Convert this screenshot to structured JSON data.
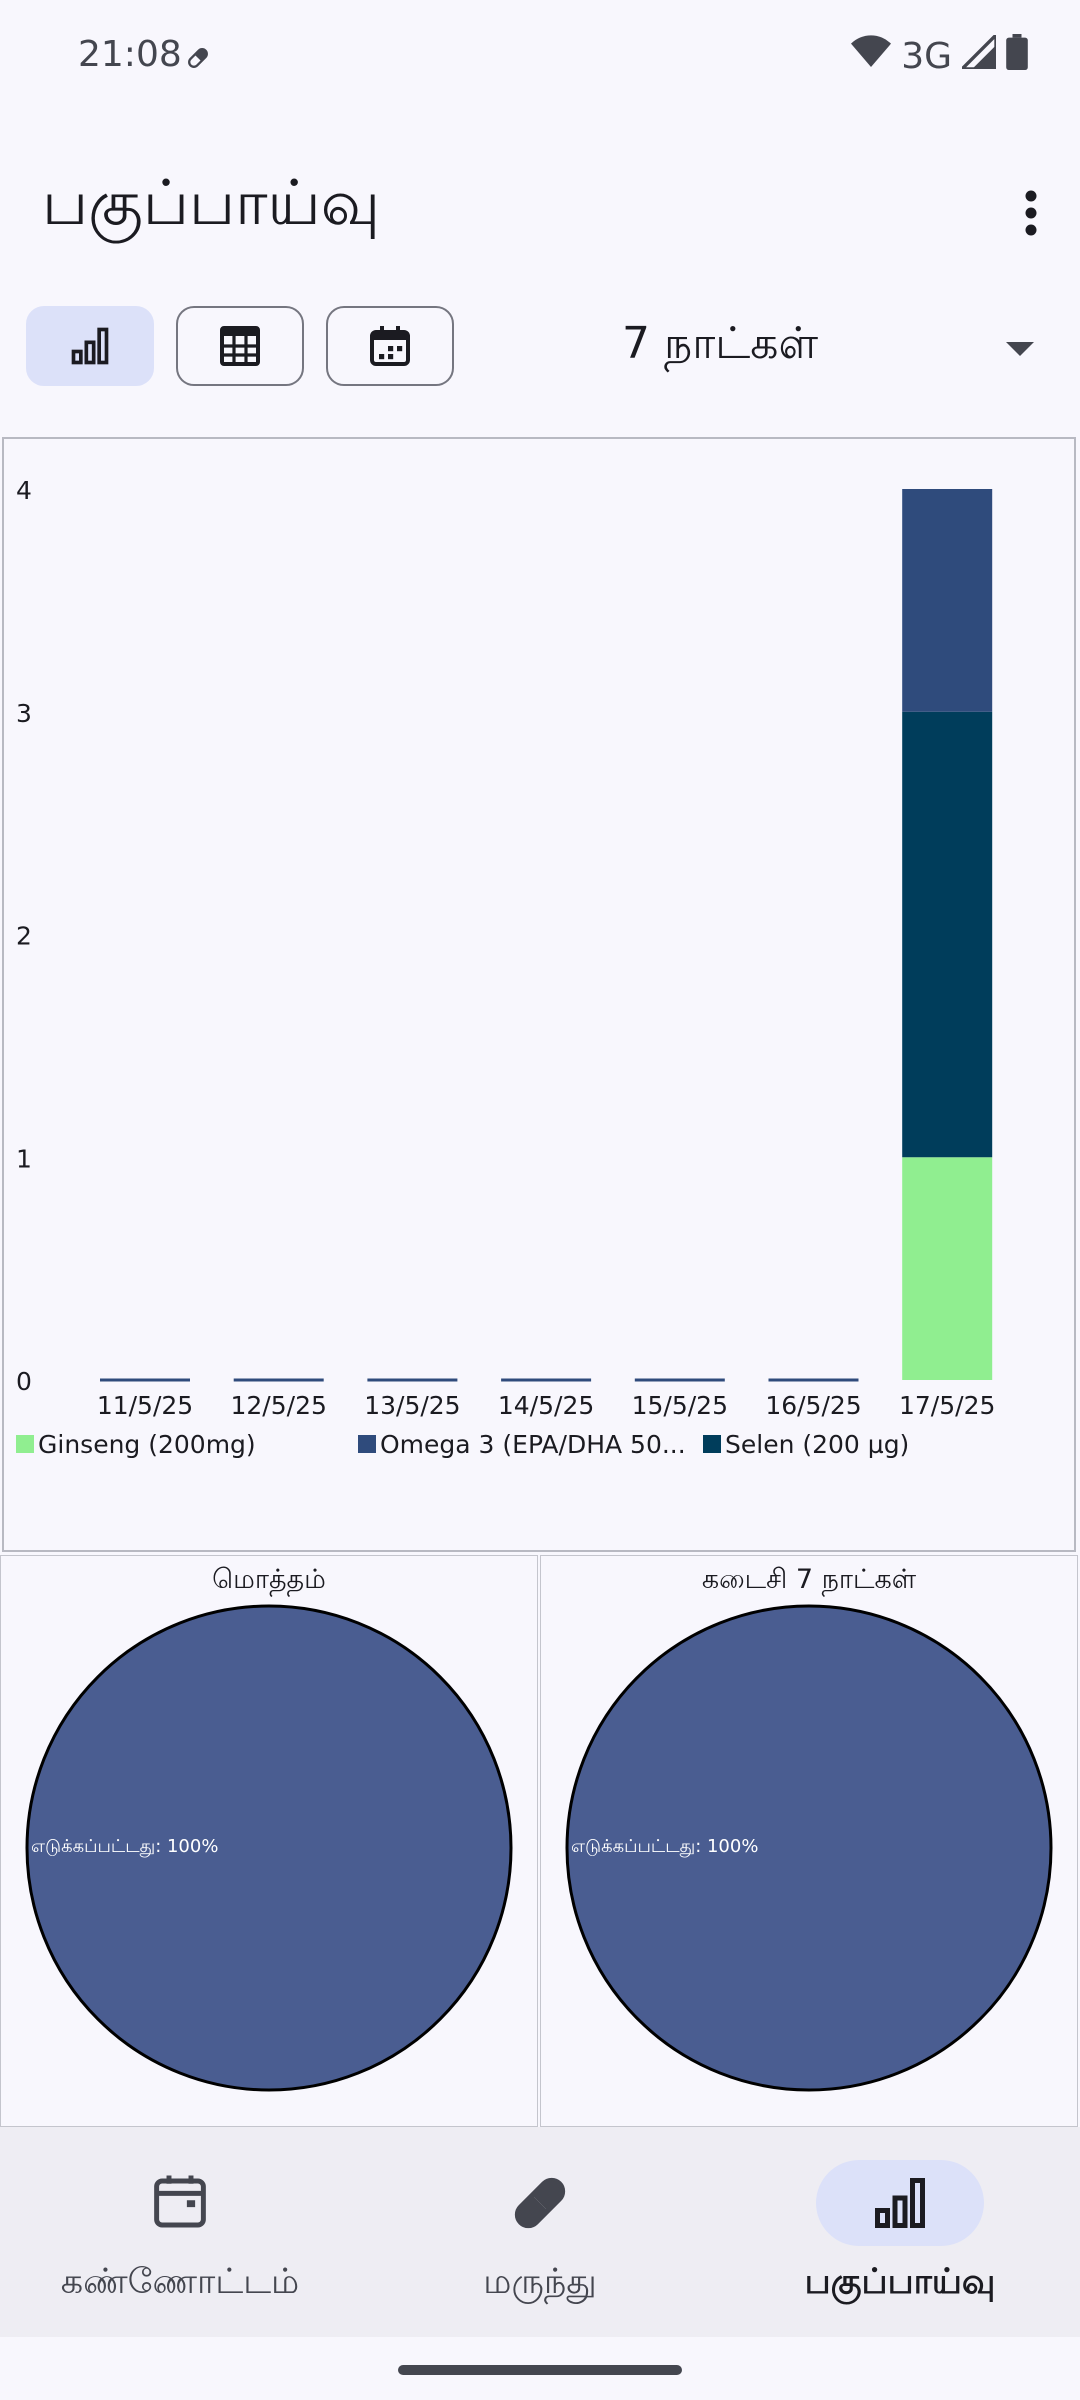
{
  "status": {
    "time": "21:08",
    "network": "3G"
  },
  "header": {
    "title": "பகுப்பாய்வு"
  },
  "view_toggle": {
    "options": [
      "bar-chart-icon",
      "table-icon",
      "calendar-icon"
    ],
    "selected": "bar-chart-icon"
  },
  "range": {
    "selected": "7 நாட்கள்"
  },
  "chart_data": [
    {
      "type": "bar",
      "stacked": true,
      "categories": [
        "11/5/25",
        "12/5/25",
        "13/5/25",
        "14/5/25",
        "15/5/25",
        "16/5/25",
        "17/5/25"
      ],
      "series": [
        {
          "name": "Ginseng (200mg)",
          "color": "#90ee90",
          "values": [
            0,
            0,
            0,
            0,
            0,
            0,
            1
          ]
        },
        {
          "name": "Selen (200 µg)",
          "color": "#003d5b",
          "values": [
            0,
            0,
            0,
            0,
            0,
            0,
            2
          ]
        },
        {
          "name": "Omega 3 (EPA/DHA 50...",
          "color": "#2f4b7c",
          "values": [
            0,
            0,
            0,
            0,
            0,
            0,
            1
          ]
        }
      ],
      "legend_order": [
        "Ginseng (200mg)",
        "Omega 3 (EPA/DHA 50...",
        "Selen (200 µg)"
      ],
      "ylim": [
        0,
        4
      ],
      "yticks": [
        "0",
        "1",
        "2",
        "3",
        "4"
      ],
      "grid": false,
      "legend_position": "bottom-left"
    },
    {
      "type": "pie",
      "title": "மொத்தம்",
      "slices": [
        {
          "label": "எடுக்கப்பட்டது: 100%",
          "value": 100,
          "color": "#4a5d91"
        }
      ]
    },
    {
      "type": "pie",
      "title": "கடைசி 7 நாட்கள்",
      "slices": [
        {
          "label": "எடுக்கப்பட்டது: 100%",
          "value": 100,
          "color": "#4a5d91"
        }
      ]
    }
  ],
  "bottom_nav": {
    "items": [
      {
        "label": "கண்ணோட்டம்",
        "icon": "calendar-card-icon"
      },
      {
        "label": "மருந்து",
        "icon": "pill-icon"
      },
      {
        "label": "பகுப்பாய்வு",
        "icon": "bar-chart-icon"
      }
    ],
    "active": 2
  }
}
